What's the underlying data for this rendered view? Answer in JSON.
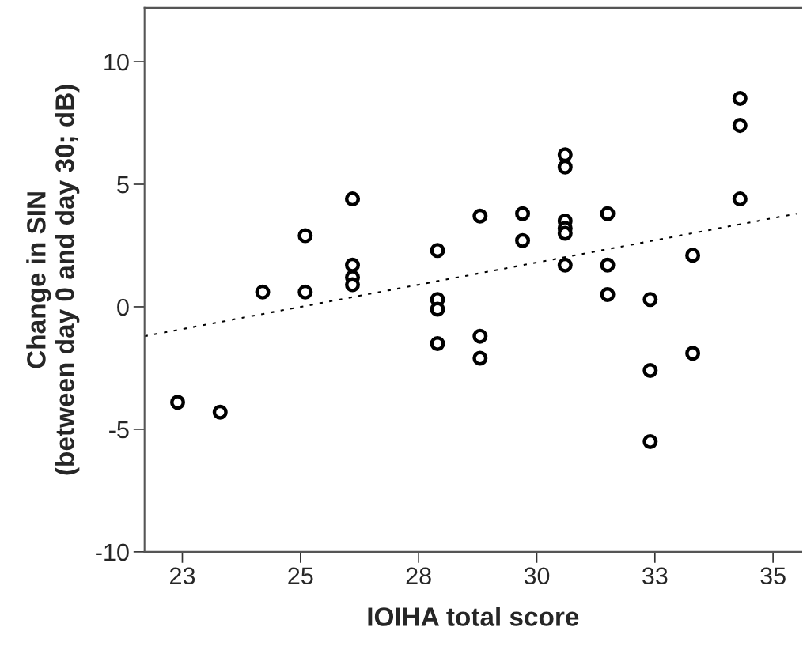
{
  "chart_data": {
    "type": "scatter",
    "xlabel": "IOIHA total score",
    "ylabel": "Change in SIN\n(between day 0 and day 30; dB)",
    "xlim": [
      21.7,
      35.6
    ],
    "xticks": [
      {
        "value": 22.5,
        "label": "23"
      },
      25,
      {
        "value": 27.5,
        "label": "28"
      },
      30,
      {
        "value": 32.5,
        "label": "33"
      },
      35
    ],
    "ylim": [
      -10,
      12.2
    ],
    "yticks": [
      -10,
      -5,
      0,
      5,
      10
    ],
    "grid": false,
    "legend": false,
    "marker": "circle",
    "series": [
      {
        "color": "#000000",
        "x": [
          22.4,
          23.3,
          24.2,
          25.1,
          25.1,
          26.1,
          26.1,
          26.1,
          26.1,
          27.9,
          27.9,
          27.9,
          27.9,
          28.8,
          28.8,
          28.8,
          29.7,
          29.7,
          30.6,
          30.6,
          30.6,
          30.6,
          30.6,
          30.6,
          31.5,
          31.5,
          31.5,
          32.4,
          32.4,
          32.4,
          33.3,
          33.3,
          34.3,
          34.3,
          34.3
        ],
        "values": [
          -3.9,
          -4.3,
          0.6,
          2.9,
          0.6,
          4.4,
          1.7,
          1.2,
          0.9,
          2.3,
          0.3,
          -0.1,
          -1.5,
          3.7,
          -1.2,
          -2.1,
          3.8,
          2.7,
          6.2,
          5.7,
          3.5,
          3.2,
          3.0,
          1.7,
          3.8,
          1.7,
          0.5,
          0.3,
          -2.6,
          -5.5,
          2.1,
          -1.9,
          8.5,
          7.4,
          4.4
        ]
      },
      {
        "type": "line",
        "color": "#000000",
        "line_style": "dotted",
        "marker": "none",
        "x": [
          21.7,
          35.5
        ],
        "values": [
          -1.2,
          3.8
        ]
      }
    ]
  }
}
